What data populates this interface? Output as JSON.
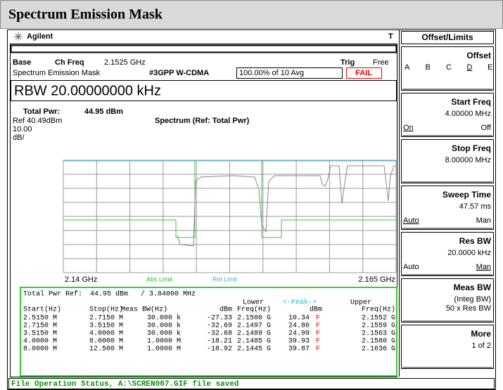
{
  "header": {
    "title": "Spectrum Emission Mask"
  },
  "top": {
    "logo": "Agilent",
    "marker": "T"
  },
  "status": {
    "base": "Base",
    "chfreq_label": "Ch Freq",
    "chfreq": "2.1525 GHz",
    "trig_label": "Trig",
    "trig": "Free",
    "mode": "Spectrum Emission Mask",
    "standard": "#3GPP W-CDMA",
    "avg": "100.00% of 10 Avg",
    "result": "FAIL"
  },
  "rbw": "RBW 20.00000000 kHz",
  "total_pwr": {
    "label": "Total Pwr:",
    "value": "44.95 dBm"
  },
  "graph": {
    "ref": "Ref 40.49dBm",
    "title": "Spectrum (Ref: Total Pwr)",
    "scale": "10.00",
    "scale_unit": "dB/",
    "x_start": "2.14 GHz",
    "x_stop": "2.165 GHz",
    "abs_limit": "Abs Limit",
    "rel_limit": "Rel Limit"
  },
  "table": {
    "ref_label": "Total Pwr Ref:",
    "ref_value": "44.95 dBm",
    "ref_bw": "/ 3.84000 MHz",
    "lower": "Lower",
    "peak": "<-Peak->",
    "upper": "Upper",
    "columns": [
      "Start(Hz)",
      "Stop(Hz)",
      "Meas BW(Hz)",
      "dBm",
      "Freq(Hz)",
      "dBm",
      "Freq(Hz)"
    ],
    "rows": [
      [
        "2.5150 M",
        "2.7150 M",
        "30.000 k",
        "-27.33",
        "2.1500 G",
        "10.34",
        "F",
        "2.1552 G"
      ],
      [
        "2.7150 M",
        "3.5150 M",
        "30.000 k",
        "-32.69",
        "2.1497 G",
        "24.86",
        "F",
        "2.1559 G"
      ],
      [
        "3.5150 M",
        "4.0000 M",
        "30.000 k",
        "-32.68",
        "2.1489 G",
        "24.99",
        "F",
        "2.1563 G"
      ],
      [
        "4.0000 M",
        "8.0000 M",
        "1.0000 M",
        "-18.21",
        "2.1485 G",
        "39.93",
        "F",
        "2.1580 G"
      ],
      [
        "8.0000 M",
        "12.500 M",
        "1.0000 M",
        "-18.92",
        "2.1445 G",
        "39.87",
        "F",
        "2.1636 G"
      ]
    ]
  },
  "status_bar": "File Operation Status, A:\\SCREN007.GIF file saved",
  "menu": {
    "title": "Offset/Limits",
    "keys": [
      {
        "label": "Offset",
        "letters": [
          "A",
          "B",
          "C",
          "D",
          "E"
        ],
        "selected": 3
      },
      {
        "label": "Start Freq",
        "lines": [
          "4.00000 MHz"
        ],
        "options": [
          "On",
          "Off"
        ],
        "selected": 0
      },
      {
        "label": "Stop Freq",
        "lines": [
          "8.00000 MHz"
        ]
      },
      {
        "label": "Sweep Time",
        "lines": [
          "47.57 ms"
        ],
        "options": [
          "Auto",
          "Man"
        ],
        "selected": 0
      },
      {
        "label": "Res BW",
        "lines": [
          "20.0000 kHz"
        ],
        "options": [
          "Auto",
          "Man"
        ],
        "selected": 1
      },
      {
        "label": "Meas BW",
        "lines": [
          "(Integ BW)",
          "50 x Res BW"
        ]
      },
      {
        "label": "More",
        "lines": [
          "1 of 2"
        ]
      }
    ]
  }
}
